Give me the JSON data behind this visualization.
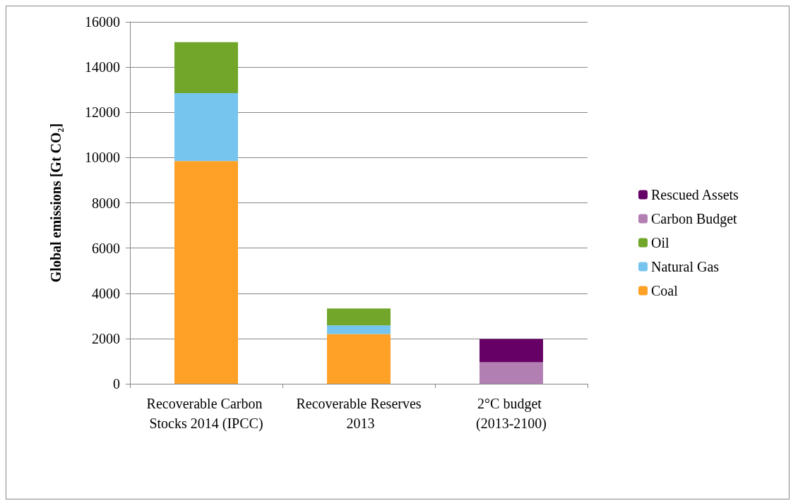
{
  "chart_data": {
    "type": "bar",
    "stacked": true,
    "ylabel": "Global emissions [Gt CO₂]",
    "categories": [
      "Recoverable Carbon Stocks 2014 (IPCC)",
      "Recoverable Reserves 2013",
      "2°C budget (2013-2100)"
    ],
    "series": [
      {
        "name": "Coal",
        "color": "#ffa126",
        "values": [
          9850,
          2200,
          null
        ]
      },
      {
        "name": "Natural Gas",
        "color": "#75c5ef",
        "values": [
          3000,
          380,
          null
        ]
      },
      {
        "name": "Oil",
        "color": "#71a62a",
        "values": [
          2250,
          750,
          null
        ]
      },
      {
        "name": "Carbon Budget",
        "color": "#b27fb2",
        "values": [
          null,
          null,
          950
        ]
      },
      {
        "name": "Rescued Assets",
        "color": "#660066",
        "values": [
          null,
          null,
          1030
        ]
      }
    ],
    "ylim": [
      0,
      16000
    ],
    "yticks": [
      0,
      2000,
      4000,
      6000,
      8000,
      10000,
      12000,
      14000,
      16000
    ],
    "grid": "y",
    "legend": "right"
  }
}
